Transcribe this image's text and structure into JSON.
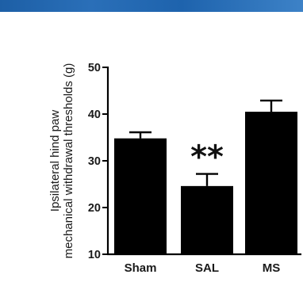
{
  "chart_data": {
    "type": "bar",
    "title": "",
    "xlabel": "",
    "ylabel_lines": [
      "Ipsilateral hind paw",
      "mechanical withdrawal thresholds (g)"
    ],
    "categories": [
      "Sham",
      "SAL",
      "MS"
    ],
    "values": [
      34.8,
      24.6,
      40.5
    ],
    "errors": [
      1.3,
      2.6,
      2.4
    ],
    "annotations": [
      {
        "category": "SAL",
        "text": "**"
      }
    ],
    "ylim": [
      10,
      50
    ],
    "yticks": [
      "10",
      "20",
      "30",
      "40",
      "50"
    ],
    "bar_color": "#000000",
    "grid": false,
    "legend": "none"
  }
}
